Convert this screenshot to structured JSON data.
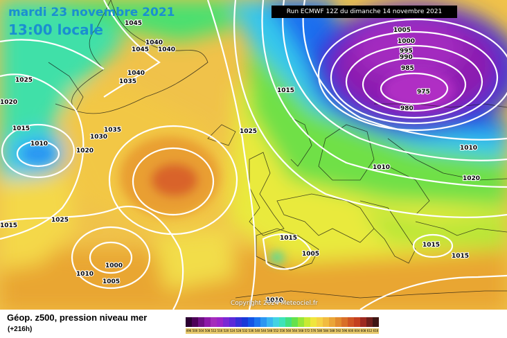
{
  "header": {
    "date": "mardi 23 novembre 2021",
    "time": "13:00 locale",
    "run": "Run ECMWF 12Z du dimanche 14 novembre 2021"
  },
  "copyright": "Copyright 2024 Meteociel.fr",
  "legend": {
    "title": "Géop. z500, pression niveau mer",
    "subtitle": "(+216h)",
    "scale_values": [
      "496",
      "500",
      "504",
      "508",
      "512",
      "516",
      "520",
      "524",
      "528",
      "532",
      "536",
      "540",
      "544",
      "548",
      "552",
      "556",
      "560",
      "564",
      "568",
      "572",
      "576",
      "580",
      "584",
      "588",
      "592",
      "596",
      "600",
      "604",
      "608",
      "612",
      "616"
    ],
    "scale_colors": [
      "#2b0031",
      "#4d0058",
      "#6e0f83",
      "#8e1aa8",
      "#a52cbb",
      "#9b24c8",
      "#7b28d3",
      "#5a2ad8",
      "#3530d8",
      "#1a39d8",
      "#1255e6",
      "#1b75ef",
      "#2b97f2",
      "#39b7f0",
      "#43d3e3",
      "#3ee3b8",
      "#42e07f",
      "#64e24b",
      "#99e637",
      "#c9ea32",
      "#f0e63c",
      "#f6d244",
      "#f2bc3f",
      "#eba536",
      "#e28b2d",
      "#d96f28",
      "#cf5523",
      "#c4401f",
      "#9d2a20",
      "#6e1f1b",
      "#3f1613"
    ]
  },
  "isobar_labels": [
    "1045",
    "1040",
    "1045",
    "1040",
    "1040",
    "1035",
    "1025",
    "1020",
    "1015",
    "1010",
    "1035",
    "1030",
    "1020",
    "1025",
    "1015",
    "1000",
    "1010",
    "1005",
    "1025",
    "1015",
    "1005",
    "1015",
    "1010",
    "1005",
    "1000",
    "995",
    "990",
    "985",
    "975",
    "980",
    "1010",
    "1010",
    "1020",
    "1015",
    "1015"
  ]
}
